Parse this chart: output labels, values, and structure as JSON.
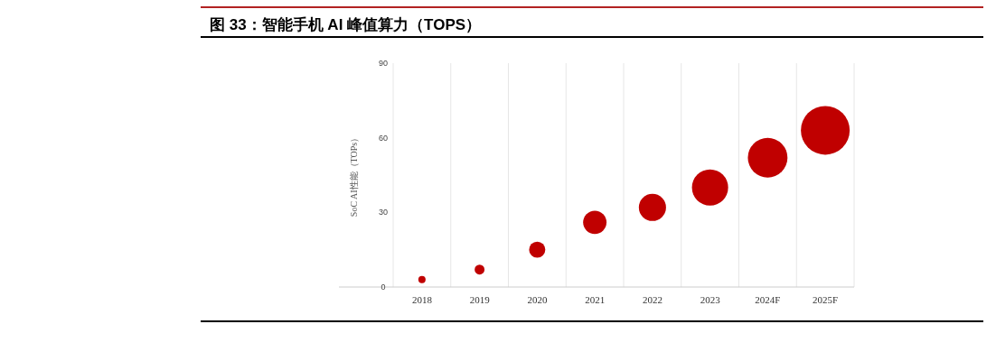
{
  "chart_data": {
    "type": "bubble",
    "title": "图 33：智能手机 AI 峰值算力（TOPS）",
    "ylabel": "SoC AI性能（TOPs）",
    "categories": [
      "2018",
      "2019",
      "2020",
      "2021",
      "2022",
      "2023",
      "2024F",
      "2025F"
    ],
    "values": [
      3,
      7,
      15,
      26,
      32,
      40,
      52,
      63
    ],
    "sizes": [
      0.022,
      0.041,
      0.11,
      0.23,
      0.31,
      0.55,
      0.66,
      1
    ],
    "color": "#c00000",
    "ylim": [
      0,
      90
    ],
    "yticks": [
      0,
      30,
      60,
      90
    ],
    "grid": "x"
  }
}
